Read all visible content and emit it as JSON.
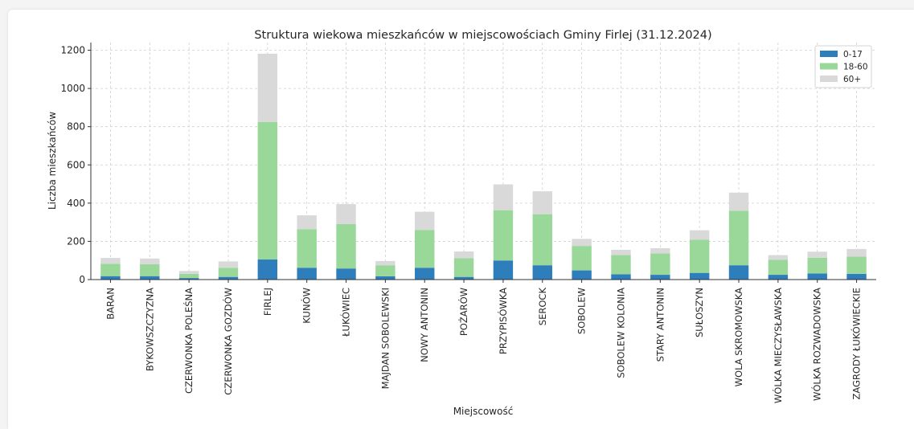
{
  "chart_data": {
    "type": "bar",
    "stacked": true,
    "title": "Struktura wiekowa mieszkańców w miejscowościach Gminy Firlej (31.12.2024)",
    "xlabel": "Miejscowość",
    "ylabel": "Liczba mieszkańców",
    "ylim": [
      0,
      1240
    ],
    "yticks": [
      0,
      200,
      400,
      600,
      800,
      1000,
      1200
    ],
    "grid": true,
    "legend_position": "top-right",
    "categories": [
      "BARAN",
      "BYKOWSZCZYZNA",
      "CZERWONKA POLEŚNA",
      "CZERWONKA GOZDÓW",
      "FIRLEJ",
      "KUNÓW",
      "ŁUKÓWIEC",
      "MAJDAN SOBOLEWSKI",
      "NOWY ANTONIN",
      "POŻARÓW",
      "PRZYPISÓWKA",
      "SEROCK",
      "SOBOLEW",
      "SOBOLEW KOLONIA",
      "STARY ANTONIN",
      "SUŁOSZYN",
      "WOLA SKROMOWSKA",
      "WÓLKA MIECZYSŁAWSKA",
      "WÓLKA ROZWADOWSKA",
      "ZAGRODY ŁUKÓWIECKIE"
    ],
    "series": [
      {
        "name": "0-17",
        "color": "#2f7ebc",
        "values": [
          18,
          18,
          8,
          14,
          105,
          62,
          58,
          17,
          62,
          14,
          100,
          75,
          48,
          28,
          25,
          35,
          75,
          25,
          32,
          30
        ]
      },
      {
        "name": "18-60",
        "color": "#9ad89a",
        "values": [
          65,
          62,
          22,
          48,
          720,
          202,
          232,
          58,
          198,
          98,
          263,
          267,
          128,
          100,
          112,
          173,
          285,
          78,
          82,
          90
        ]
      },
      {
        "name": "60+",
        "color": "#d9d9d9",
        "values": [
          30,
          30,
          15,
          33,
          357,
          72,
          105,
          22,
          95,
          35,
          135,
          120,
          37,
          28,
          27,
          50,
          95,
          25,
          32,
          40
        ]
      }
    ]
  }
}
